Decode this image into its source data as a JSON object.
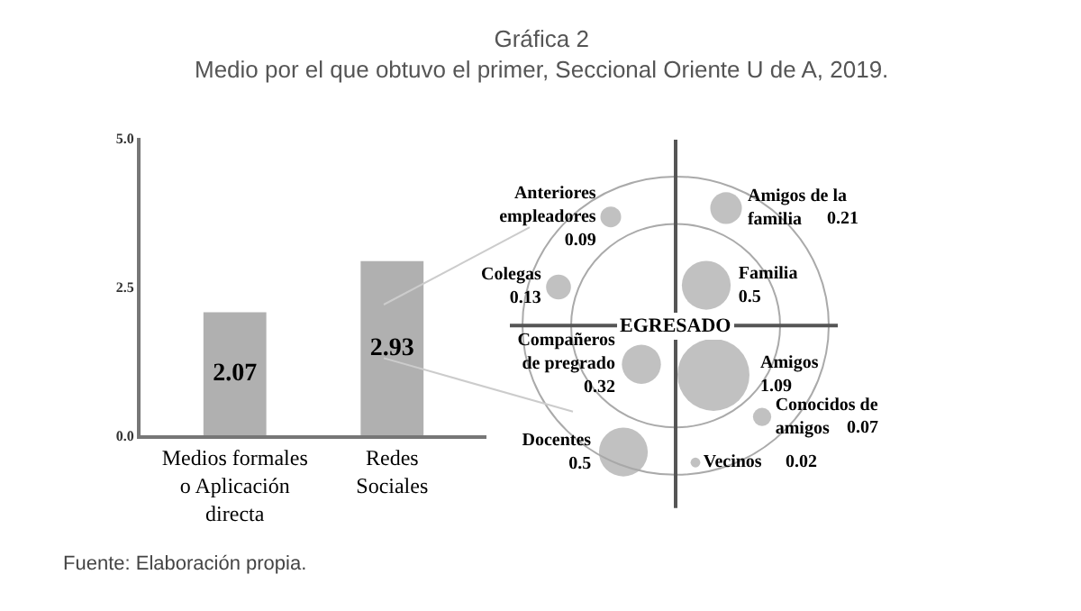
{
  "chart_data": [
    {
      "type": "bar",
      "title": "Gráfica 2",
      "subtitle": "Medio por el que obtuvo el primer, Seccional Oriente U de A, 2019.",
      "categories": [
        "Medios formales o Aplicación directa",
        "Redes Sociales"
      ],
      "values": [
        2.07,
        2.93
      ],
      "color": "#b0b0b0",
      "ylim": [
        0,
        5
      ],
      "yticks": [
        {
          "value": 0,
          "label": "0.0"
        },
        {
          "value": 2.5,
          "label": "2.5"
        },
        {
          "value": 5,
          "label": "5.0"
        }
      ],
      "data_labels": true,
      "annotations": [
        "Fuente: Elaboración propia."
      ]
    },
    {
      "type": "other",
      "categories": [
        "Anteriores empleadores",
        "Amigos de la familia",
        "Colegas",
        "Familia",
        "Compañeros de pregrado",
        "Amigos",
        "Conocidos de amigos",
        "Docentes",
        "Vecinos"
      ],
      "values": [
        0.09,
        0.21,
        0.13,
        0.5,
        0.32,
        1.09,
        0.07,
        0.5,
        0.02
      ],
      "value_labels": [
        "0.09",
        "0.21",
        "0.13",
        "0.5",
        "0.32",
        "1.09",
        "0.07",
        "0.5",
        "0.02"
      ],
      "color": "#a6a6a6",
      "annotations": [
        "EGRESADO"
      ]
    }
  ]
}
